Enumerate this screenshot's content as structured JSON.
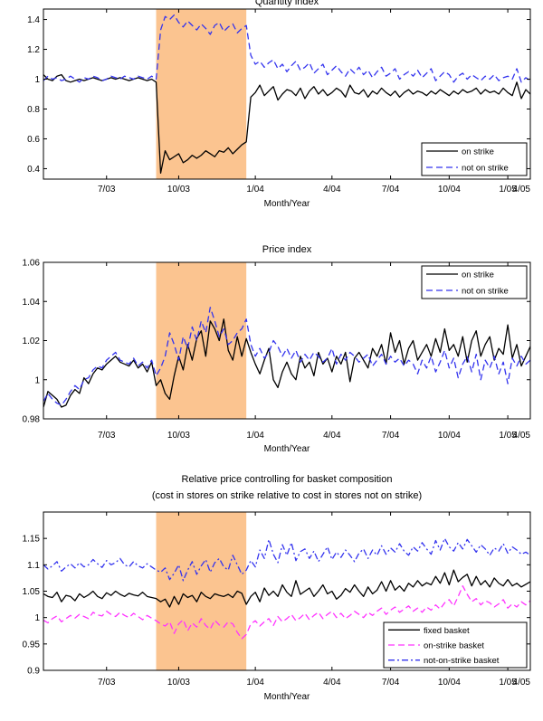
{
  "chart_data": [
    {
      "type": "line",
      "title": "Quantity index",
      "xlabel": "Month/Year",
      "ylabel": "",
      "xlim": [
        0,
        108
      ],
      "ylim": [
        0.33,
        1.47
      ],
      "x_ticks": [
        {
          "x": 14,
          "label": "7/03"
        },
        {
          "x": 30,
          "label": "10/03"
        },
        {
          "x": 47,
          "label": "1/04"
        },
        {
          "x": 64,
          "label": "4/04"
        },
        {
          "x": 77,
          "label": "7/04"
        },
        {
          "x": 90,
          "label": "10/04"
        },
        {
          "x": 103,
          "label": "1/05"
        },
        {
          "x": 108,
          "label": "4/05"
        }
      ],
      "y_ticks": [
        0.4,
        0.6,
        0.8,
        1,
        1.2,
        1.4
      ],
      "y_tick_labels": [
        "0.4",
        "0.6",
        "0.8",
        "1",
        "1.2",
        "1.4"
      ],
      "shaded_region": {
        "x0": 25,
        "x1": 45,
        "color": "#fbc490"
      },
      "legend_position": "bottom-right",
      "series": [
        {
          "name": "on strike",
          "color": "#000000",
          "style": "solid",
          "values": [
            1.03,
            1.0,
            0.99,
            1.02,
            1.03,
            0.99,
            0.98,
            0.99,
            1.0,
            0.99,
            1.0,
            1.01,
            1.0,
            0.99,
            1.0,
            1.01,
            1.0,
            1.01,
            1.0,
            0.99,
            1.0,
            1.01,
            1.0,
            0.99,
            1.0,
            0.98,
            0.37,
            0.52,
            0.46,
            0.48,
            0.5,
            0.44,
            0.46,
            0.49,
            0.47,
            0.49,
            0.52,
            0.5,
            0.48,
            0.52,
            0.51,
            0.54,
            0.5,
            0.53,
            0.56,
            0.58,
            0.88,
            0.91,
            0.96,
            0.89,
            0.92,
            0.95,
            0.86,
            0.9,
            0.93,
            0.92,
            0.89,
            0.94,
            0.87,
            0.92,
            0.95,
            0.9,
            0.93,
            0.89,
            0.91,
            0.94,
            0.92,
            0.88,
            0.96,
            0.91,
            0.9,
            0.93,
            0.88,
            0.92,
            0.9,
            0.94,
            0.91,
            0.89,
            0.92,
            0.88,
            0.91,
            0.93,
            0.9,
            0.92,
            0.91,
            0.89,
            0.92,
            0.9,
            0.93,
            0.91,
            0.89,
            0.92,
            0.9,
            0.93,
            0.91,
            0.92,
            0.94,
            0.9,
            0.93,
            0.91,
            0.92,
            0.9,
            0.94,
            0.91,
            0.89,
            0.98,
            0.87,
            0.93,
            0.9
          ]
        },
        {
          "name": "not on strike",
          "color": "#3333ee",
          "style": "dashed",
          "values": [
            0.99,
            1.02,
            1.0,
            1.01,
            0.99,
            1.0,
            1.02,
            1.0,
            0.98,
            1.01,
            1.0,
            1.02,
            1.01,
            0.99,
            1.0,
            1.02,
            1.01,
            1.0,
            1.02,
            1.01,
            1.0,
            1.02,
            1.01,
            1.0,
            1.02,
            1.0,
            1.33,
            1.42,
            1.4,
            1.43,
            1.38,
            1.35,
            1.39,
            1.36,
            1.33,
            1.37,
            1.34,
            1.3,
            1.36,
            1.38,
            1.32,
            1.35,
            1.37,
            1.31,
            1.34,
            1.36,
            1.16,
            1.1,
            1.12,
            1.08,
            1.11,
            1.13,
            1.07,
            1.1,
            1.05,
            1.09,
            1.12,
            1.06,
            1.08,
            1.11,
            1.04,
            1.07,
            1.1,
            1.03,
            1.06,
            1.09,
            1.05,
            1.02,
            1.07,
            1.04,
            1.08,
            1.03,
            1.06,
            1.01,
            1.05,
            1.08,
            1.02,
            1.04,
            1.07,
            1.0,
            1.03,
            1.05,
            1.02,
            1.06,
            1.01,
            1.04,
            1.07,
            0.99,
            1.02,
            1.05,
            1.03,
            0.98,
            1.02,
            1.04,
            1.0,
            1.03,
            1.01,
            0.99,
            1.02,
            1.0,
            1.03,
            0.99,
            1.01,
            1.02,
            1.0,
            1.07,
            0.98,
            1.01,
            0.99
          ]
        }
      ]
    },
    {
      "type": "line",
      "title": "Price index",
      "xlabel": "Month/Year",
      "ylabel": "",
      "xlim": [
        0,
        108
      ],
      "ylim": [
        0.98,
        1.06
      ],
      "x_ticks": [
        {
          "x": 14,
          "label": "7/03"
        },
        {
          "x": 30,
          "label": "10/03"
        },
        {
          "x": 47,
          "label": "1/04"
        },
        {
          "x": 64,
          "label": "4/04"
        },
        {
          "x": 77,
          "label": "7/04"
        },
        {
          "x": 90,
          "label": "10/04"
        },
        {
          "x": 103,
          "label": "1/05"
        },
        {
          "x": 108,
          "label": "4/05"
        }
      ],
      "y_ticks": [
        0.98,
        1,
        1.02,
        1.04,
        1.06
      ],
      "y_tick_labels": [
        "0.98",
        "1",
        "1.02",
        "1.04",
        "1.06"
      ],
      "shaded_region": {
        "x0": 25,
        "x1": 45,
        "color": "#fbc490"
      },
      "legend_position": "top-right",
      "series": [
        {
          "name": "on strike",
          "color": "#000000",
          "style": "solid",
          "values": [
            0.986,
            0.994,
            0.992,
            0.99,
            0.986,
            0.987,
            0.992,
            0.995,
            0.993,
            1.001,
            0.998,
            1.003,
            1.006,
            1.005,
            1.008,
            1.01,
            1.012,
            1.009,
            1.008,
            1.007,
            1.01,
            1.006,
            1.008,
            1.004,
            1.009,
            0.997,
            1.0,
            0.993,
            0.99,
            1.002,
            1.012,
            1.005,
            1.018,
            1.01,
            1.021,
            1.025,
            1.012,
            1.03,
            1.026,
            1.02,
            1.031,
            1.015,
            1.01,
            1.022,
            1.012,
            1.021,
            1.014,
            1.008,
            1.003,
            1.01,
            1.016,
            1.0,
            0.996,
            1.004,
            1.009,
            1.003,
            1.0,
            1.012,
            1.006,
            1.009,
            1.002,
            1.014,
            1.008,
            1.011,
            1.004,
            1.012,
            1.008,
            1.014,
            0.999,
            1.011,
            1.014,
            1.01,
            1.006,
            1.016,
            1.012,
            1.018,
            1.008,
            1.024,
            1.014,
            1.02,
            1.008,
            1.016,
            1.02,
            1.01,
            1.014,
            1.018,
            1.012,
            1.021,
            1.014,
            1.026,
            1.015,
            1.018,
            1.012,
            1.022,
            1.009,
            1.02,
            1.025,
            1.012,
            1.018,
            1.022,
            1.01,
            1.016,
            1.013,
            1.028,
            1.011,
            1.018,
            1.007,
            1.012,
            1.017
          ]
        },
        {
          "name": "not on strike",
          "color": "#3333ee",
          "style": "dashed",
          "values": [
            0.989,
            0.993,
            0.99,
            0.988,
            0.987,
            0.99,
            0.994,
            0.997,
            0.995,
            1.0,
            1.001,
            1.005,
            1.007,
            1.006,
            1.01,
            1.012,
            1.014,
            1.01,
            1.009,
            1.008,
            1.011,
            1.007,
            1.009,
            1.006,
            1.01,
            1.002,
            1.006,
            1.012,
            1.024,
            1.018,
            1.01,
            1.022,
            1.016,
            1.027,
            1.02,
            1.03,
            1.024,
            1.037,
            1.03,
            1.022,
            1.026,
            1.018,
            1.02,
            1.024,
            1.026,
            1.031,
            1.018,
            1.012,
            1.016,
            1.011,
            1.014,
            1.02,
            1.017,
            1.012,
            1.016,
            1.011,
            1.015,
            1.009,
            1.013,
            1.01,
            1.014,
            1.012,
            1.009,
            1.011,
            1.016,
            1.008,
            1.013,
            1.01,
            1.014,
            1.012,
            1.009,
            1.011,
            1.013,
            1.007,
            1.01,
            1.013,
            1.008,
            1.012,
            1.009,
            1.011,
            1.007,
            1.01,
            1.008,
            1.003,
            1.01,
            1.006,
            1.012,
            1.004,
            1.009,
            1.015,
            1.006,
            1.011,
            1.001,
            1.008,
            1.012,
            1.004,
            1.013,
            1.0,
            1.01,
            1.006,
            1.012,
            1.003,
            1.009,
            0.998,
            1.011,
            1.007,
            1.012,
            1.008,
            1.01
          ]
        }
      ]
    },
    {
      "type": "line",
      "title": "Relative price controlling for basket composition",
      "subtitle": "(cost in stores on strike relative to cost in stores not on strike)",
      "xlabel": "Month/Year",
      "ylabel": "",
      "xlim": [
        0,
        108
      ],
      "ylim": [
        0.9,
        1.2
      ],
      "x_ticks": [
        {
          "x": 14,
          "label": "7/03"
        },
        {
          "x": 30,
          "label": "10/03"
        },
        {
          "x": 47,
          "label": "1/04"
        },
        {
          "x": 64,
          "label": "4/04"
        },
        {
          "x": 77,
          "label": "7/04"
        },
        {
          "x": 90,
          "label": "10/04"
        },
        {
          "x": 103,
          "label": "1/05"
        },
        {
          "x": 108,
          "label": "4/05"
        }
      ],
      "y_ticks": [
        0.9,
        0.95,
        1,
        1.05,
        1.1,
        1.15
      ],
      "y_tick_labels": [
        "0.9",
        "0.95",
        "1",
        "1.05",
        "1.1",
        "1.15"
      ],
      "shaded_region": {
        "x0": 25,
        "x1": 45,
        "color": "#fbc490"
      },
      "legend_position": "bottom-right",
      "series": [
        {
          "name": "fixed basket",
          "color": "#000000",
          "style": "solid",
          "values": [
            1.045,
            1.04,
            1.038,
            1.048,
            1.03,
            1.042,
            1.04,
            1.032,
            1.045,
            1.038,
            1.043,
            1.05,
            1.04,
            1.036,
            1.047,
            1.042,
            1.05,
            1.044,
            1.04,
            1.046,
            1.043,
            1.041,
            1.048,
            1.04,
            1.038,
            1.036,
            1.03,
            1.035,
            1.02,
            1.04,
            1.025,
            1.045,
            1.038,
            1.042,
            1.03,
            1.048,
            1.04,
            1.036,
            1.045,
            1.042,
            1.04,
            1.044,
            1.038,
            1.05,
            1.046,
            1.025,
            1.04,
            1.048,
            1.03,
            1.056,
            1.042,
            1.05,
            1.04,
            1.062,
            1.048,
            1.04,
            1.07,
            1.044,
            1.05,
            1.056,
            1.04,
            1.05,
            1.062,
            1.045,
            1.05,
            1.035,
            1.042,
            1.055,
            1.048,
            1.062,
            1.05,
            1.04,
            1.058,
            1.045,
            1.052,
            1.068,
            1.05,
            1.07,
            1.052,
            1.06,
            1.05,
            1.065,
            1.058,
            1.07,
            1.06,
            1.066,
            1.062,
            1.078,
            1.065,
            1.085,
            1.062,
            1.09,
            1.068,
            1.076,
            1.082,
            1.06,
            1.078,
            1.062,
            1.07,
            1.058,
            1.075,
            1.065,
            1.06,
            1.072,
            1.06,
            1.065,
            1.058,
            1.063,
            1.068
          ]
        },
        {
          "name": "on-strike basket",
          "color": "#ff33ff",
          "style": "dashed",
          "values": [
            0.995,
            0.99,
            0.998,
            1.003,
            0.992,
            0.998,
            1.004,
            0.999,
            1.006,
            1.002,
            0.998,
            1.01,
            1.005,
            1.003,
            1.012,
            1.006,
            1.002,
            1.01,
            1.004,
            1.0,
            1.008,
            1.002,
            0.996,
            1.004,
            0.999,
            0.994,
            0.988,
            0.984,
            0.992,
            0.97,
            0.988,
            0.996,
            0.975,
            0.99,
            0.982,
            0.998,
            0.985,
            0.978,
            0.995,
            0.986,
            0.982,
            0.992,
            0.988,
            0.972,
            0.96,
            0.968,
            0.988,
            0.994,
            0.984,
            0.992,
            0.998,
            0.985,
            1.002,
            0.992,
            0.998,
            1.006,
            0.994,
            1.0,
            1.008,
            0.996,
            1.004,
            1.01,
            0.998,
            1.006,
            1.012,
            1.0,
            1.008,
            0.998,
            1.004,
            1.012,
            1.006,
            1.0,
            1.01,
            1.004,
            1.012,
            1.018,
            1.006,
            1.014,
            1.02,
            1.01,
            1.016,
            1.022,
            1.012,
            1.018,
            1.01,
            1.02,
            1.014,
            1.024,
            1.016,
            1.028,
            1.034,
            1.022,
            1.04,
            1.06,
            1.044,
            1.03,
            1.036,
            1.024,
            1.032,
            1.028,
            1.02,
            1.026,
            1.034,
            1.018,
            1.026,
            1.02,
            1.03,
            1.024,
            1.032
          ]
        },
        {
          "name": "not-on-strike basket",
          "color": "#3333ee",
          "style": "dashdot",
          "values": [
            1.1,
            1.092,
            1.098,
            1.106,
            1.088,
            1.096,
            1.102,
            1.094,
            1.104,
            1.096,
            1.1,
            1.11,
            1.102,
            1.095,
            1.108,
            1.1,
            1.104,
            1.112,
            1.1,
            1.096,
            1.106,
            1.098,
            1.094,
            1.102,
            1.096,
            1.09,
            1.086,
            1.094,
            1.072,
            1.084,
            1.1,
            1.07,
            1.09,
            1.106,
            1.082,
            1.098,
            1.11,
            1.086,
            1.104,
            1.112,
            1.096,
            1.09,
            1.118,
            1.1,
            1.082,
            1.09,
            1.108,
            1.096,
            1.128,
            1.112,
            1.148,
            1.12,
            1.104,
            1.138,
            1.118,
            1.142,
            1.108,
            1.125,
            1.13,
            1.112,
            1.126,
            1.106,
            1.12,
            1.134,
            1.11,
            1.124,
            1.114,
            1.128,
            1.118,
            1.106,
            1.122,
            1.13,
            1.112,
            1.128,
            1.118,
            1.136,
            1.12,
            1.132,
            1.124,
            1.14,
            1.126,
            1.118,
            1.134,
            1.126,
            1.142,
            1.13,
            1.12,
            1.146,
            1.128,
            1.15,
            1.134,
            1.126,
            1.142,
            1.13,
            1.148,
            1.136,
            1.124,
            1.138,
            1.13,
            1.118,
            1.132,
            1.126,
            1.14,
            1.122,
            1.134,
            1.128,
            1.12,
            1.124,
            1.118
          ]
        }
      ]
    }
  ]
}
